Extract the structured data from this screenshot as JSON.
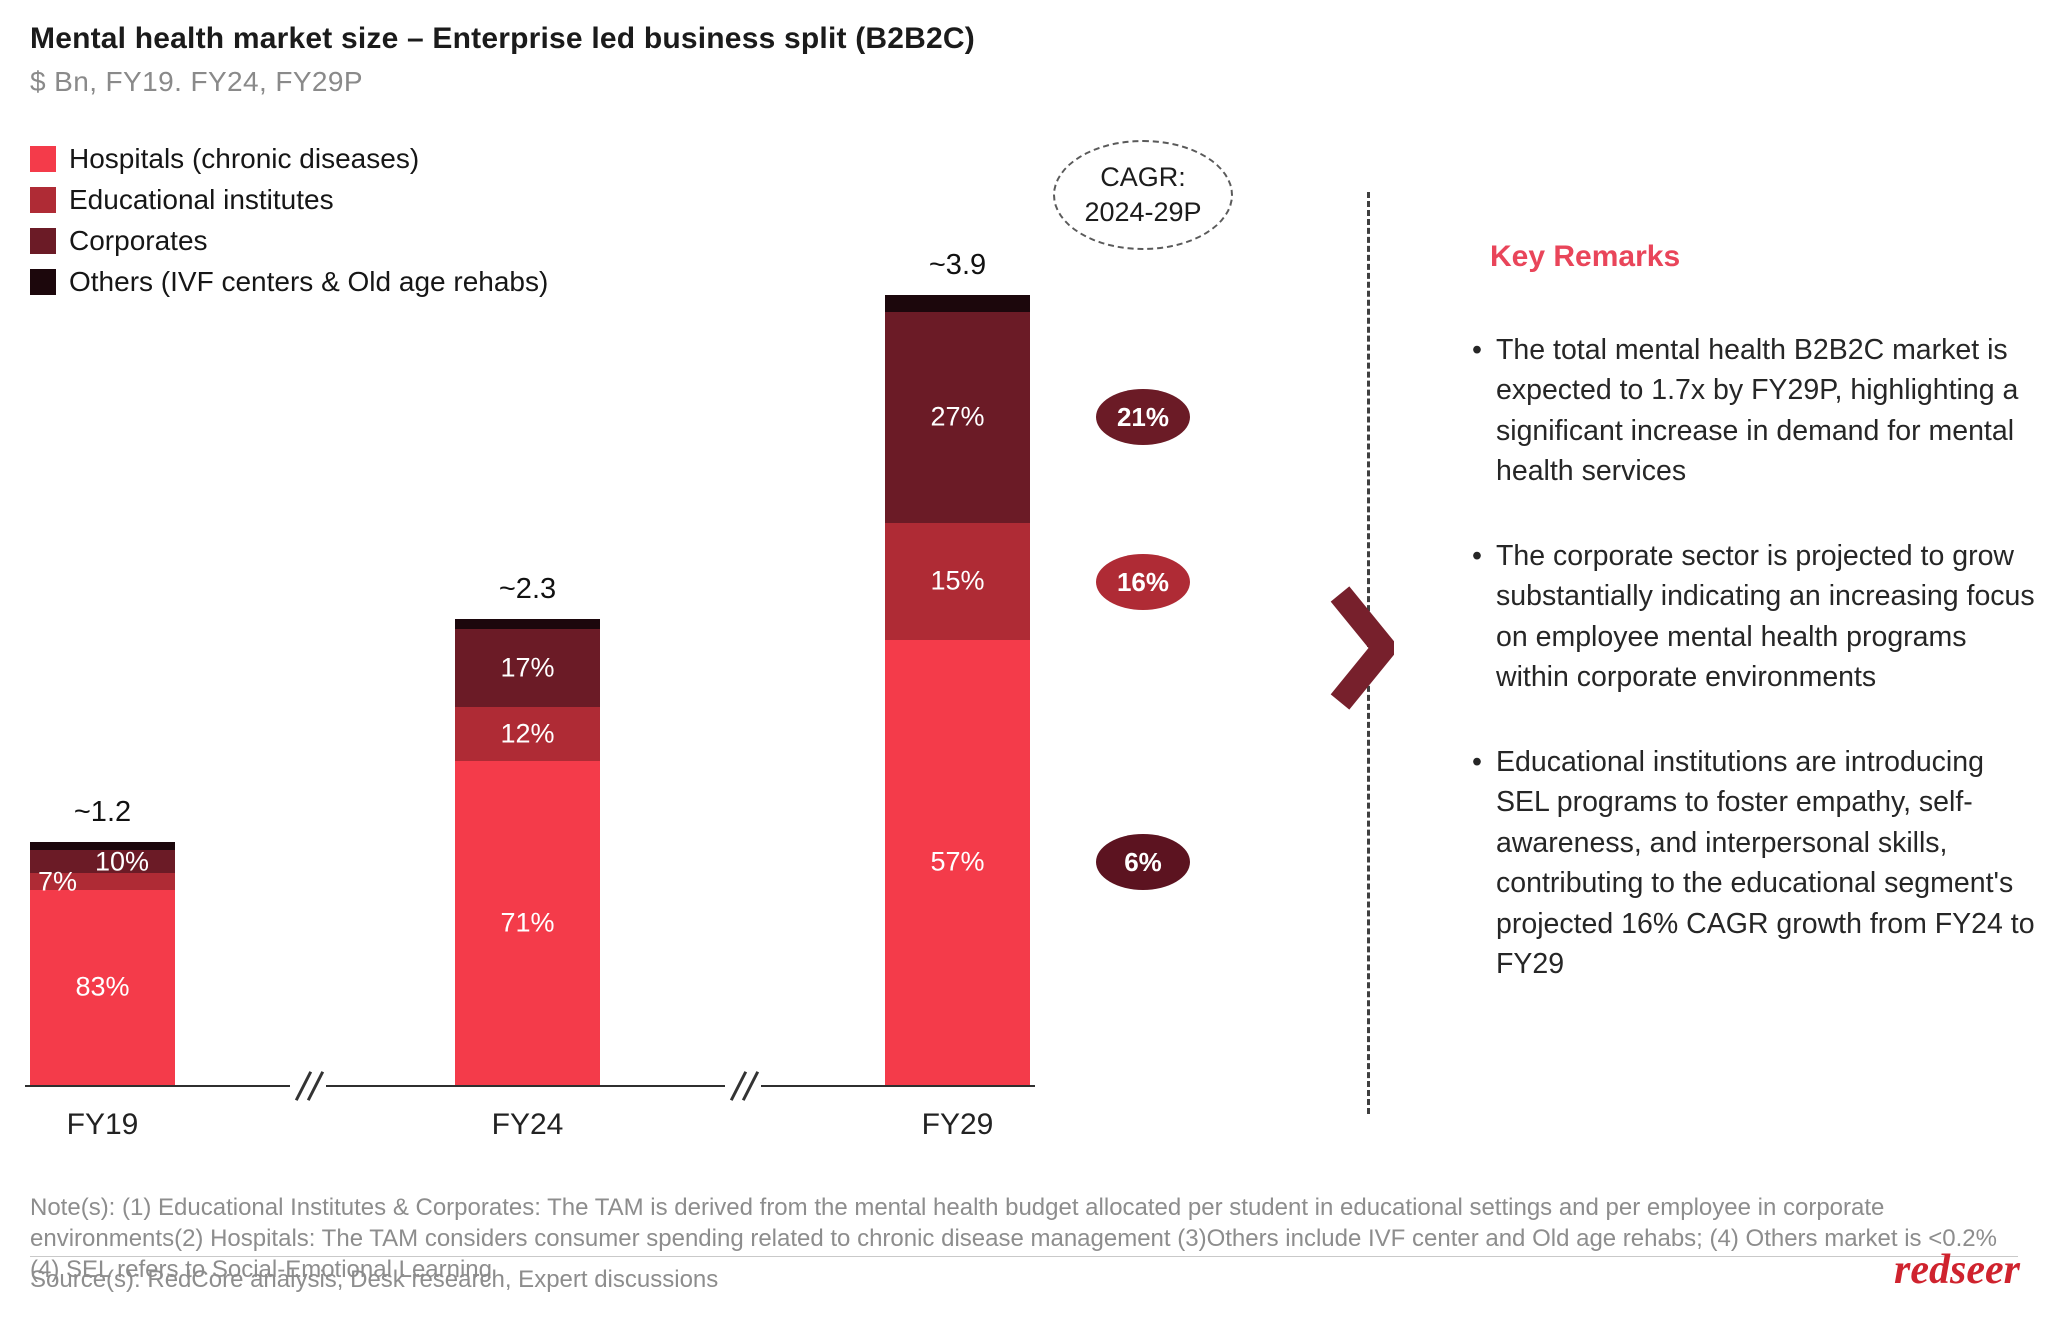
{
  "header": {
    "title": "Mental health market size – Enterprise led business split (B2B2C)",
    "subtitle": "$ Bn, FY19. FY24, FY29P"
  },
  "legend": [
    {
      "label": "Hospitals (chronic diseases)",
      "color": "#F43B4A"
    },
    {
      "label": "Educational institutes",
      "color": "#AF2B35"
    },
    {
      "label": "Corporates",
      "color": "#6B1B26"
    },
    {
      "label": "Others (IVF centers & Old age rehabs)",
      "color": "#1C070C"
    }
  ],
  "cagr": {
    "line1": "CAGR:",
    "line2": "2024-29P",
    "badges": [
      {
        "value": "21%",
        "color": "#6B1B26",
        "aligned_with": "Corporates"
      },
      {
        "value": "16%",
        "color": "#AF2B35",
        "aligned_with": "Educational institutes"
      },
      {
        "value": "6%",
        "color": "#5C1320",
        "aligned_with": "Hospitals (chronic diseases)"
      }
    ]
  },
  "chart_data": {
    "type": "bar",
    "stacked": true,
    "unit": "$ Bn",
    "title": "Mental health market size – Enterprise led business split (B2B2C)",
    "categories": [
      "FY19",
      "FY24",
      "FY29"
    ],
    "totals_label": [
      "~1.2",
      "~2.3",
      "~3.9"
    ],
    "totals_value": [
      1.2,
      2.3,
      3.9
    ],
    "axis_max": 3.9,
    "series": [
      {
        "name": "Hospitals (chronic diseases)",
        "color": "#F43B4A",
        "pct": [
          83,
          71,
          57
        ]
      },
      {
        "name": "Educational institutes",
        "color": "#AF2B35",
        "pct": [
          7,
          12,
          15
        ]
      },
      {
        "name": "Corporates",
        "color": "#6B1B26",
        "pct": [
          10,
          17,
          27
        ]
      },
      {
        "name": "Others (IVF centers & Old age rehabs)",
        "color": "#1C070C",
        "pct": [
          0.2,
          0.2,
          0.2
        ]
      }
    ],
    "label_positions": {
      "Educational institutes": [
        "left",
        "center",
        "center"
      ],
      "Corporates": [
        "right",
        "center",
        "center"
      ]
    },
    "legend_position": "top-left",
    "grid": false
  },
  "remarks": {
    "heading": "Key Remarks",
    "bullets": [
      "The total mental health B2B2C market is expected to 1.7x by FY29P, highlighting a significant increase in demand for mental health services",
      "The corporate sector is projected to grow substantially indicating an increasing focus on employee mental health programs within corporate environments",
      "Educational institutions are introducing SEL programs to foster empathy, self-awareness, and interpersonal skills, contributing to the educational segment's projected 16% CAGR growth from FY24 to FY29"
    ]
  },
  "notes": "Note(s): (1) Educational Institutes & Corporates: The TAM is derived from the mental health budget allocated per student in educational settings and per employee in corporate environments(2) Hospitals: The TAM considers consumer spending related to chronic disease management (3)Others include IVF center and Old age rehabs; (4) Others market is <0.2% (4) SEL refers to Social-Emotional Learning",
  "source": "Source(s): RedCore analysis, Desk research, Expert discussions",
  "logo": "redseer"
}
